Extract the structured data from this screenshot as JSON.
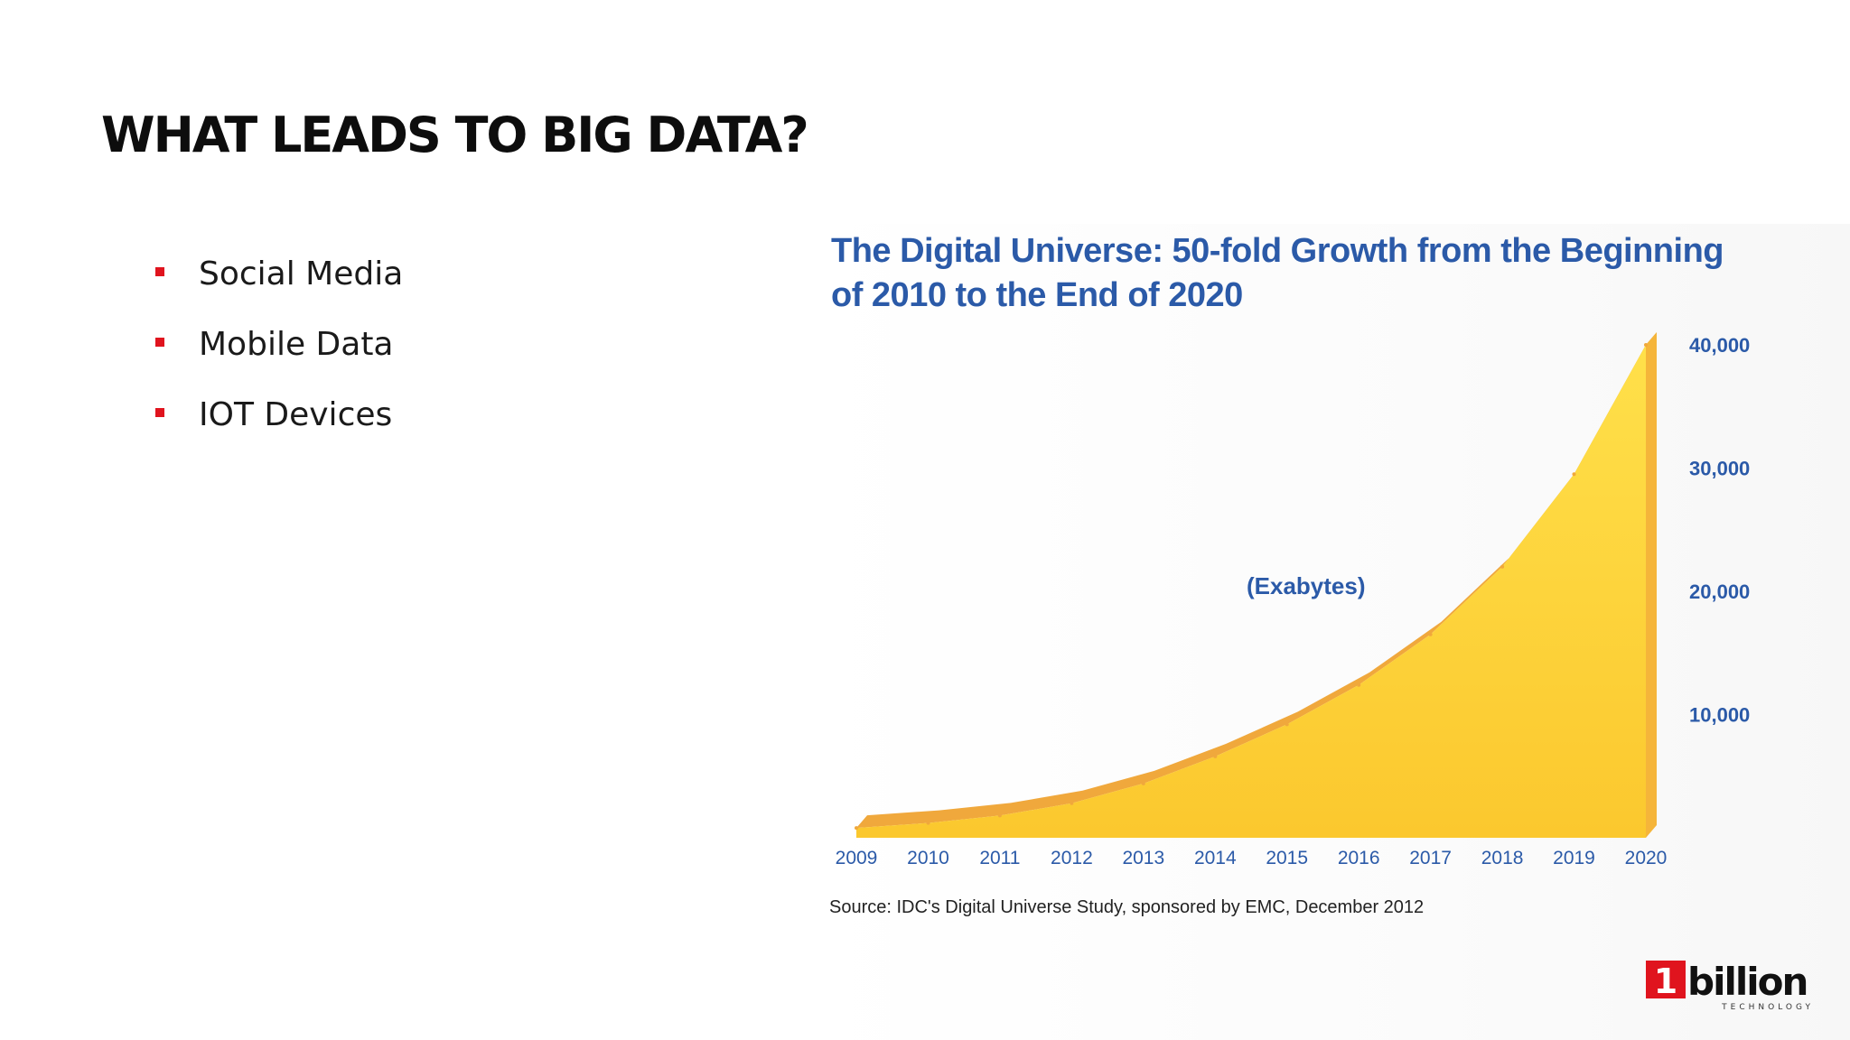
{
  "slide": {
    "title": "WHAT LEADS TO BIG DATA?",
    "bullets": [
      "Social Media",
      "Mobile Data",
      "IOT Devices"
    ],
    "accent_color": "#e0141e"
  },
  "chart_data": {
    "type": "area",
    "title": "The Digital Universe: 50-fold Growth from the Beginning of 2010 to the End of 2020",
    "annotation": "(Exabytes)",
    "source": "Source: IDC's Digital Universe Study, sponsored by EMC, December 2012",
    "x": [
      "2009",
      "2010",
      "2011",
      "2012",
      "2013",
      "2014",
      "2015",
      "2016",
      "2017",
      "2018",
      "2019",
      "2020"
    ],
    "values": [
      800,
      1200,
      1800,
      2800,
      4400,
      6600,
      9200,
      12400,
      16500,
      22000,
      29500,
      40000
    ],
    "y_ticks": [
      10000,
      20000,
      30000,
      40000
    ],
    "y_tick_labels": [
      "10,000",
      "20,000",
      "30,000",
      "40,000"
    ],
    "ylim": [
      0,
      40000
    ],
    "y_axis_side": "right",
    "grid": false,
    "fill_color": "#ffd23c",
    "edge_color": "#f0a83c",
    "title_color": "#2b5aa8",
    "tick_color": "#2b5aa8"
  },
  "logo": {
    "mark": "1",
    "word": "billion",
    "tagline": "TECHNOLOGY",
    "mark_color": "#e0141e"
  }
}
